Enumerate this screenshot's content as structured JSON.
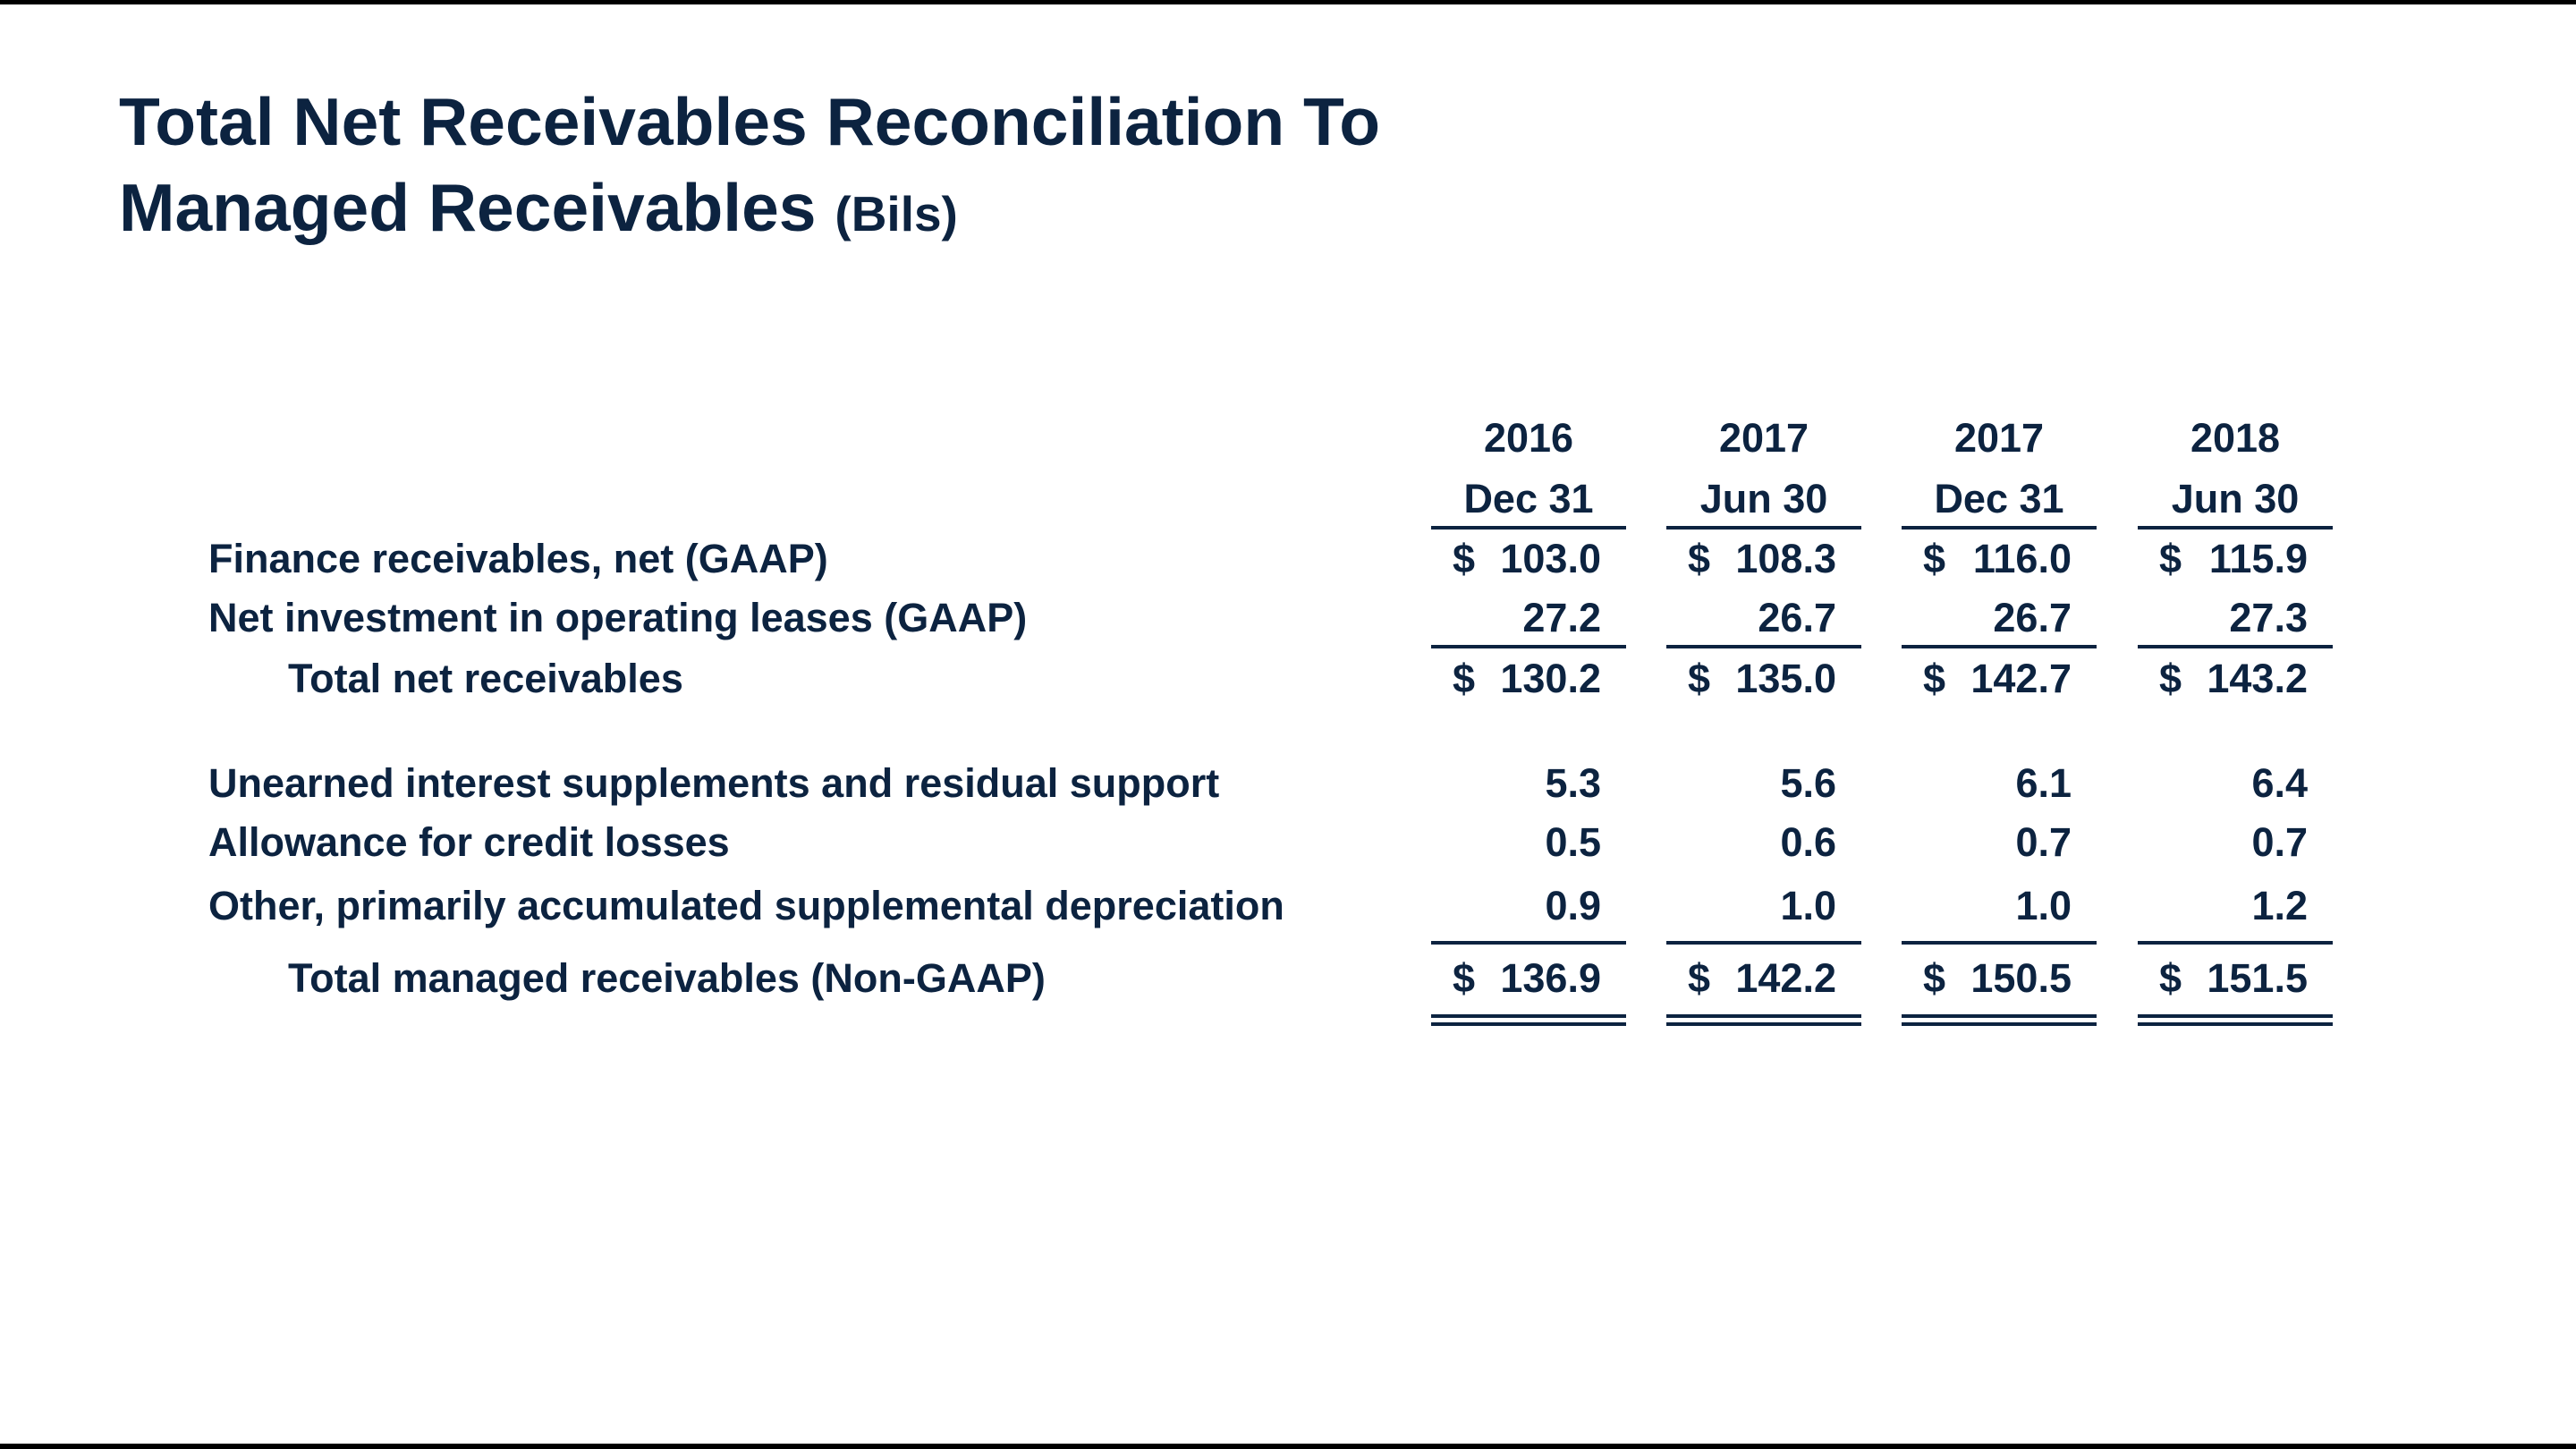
{
  "title": {
    "line1": "Total Net Receivables Reconciliation To",
    "line2": "Managed Receivables",
    "unit": "(Bils)"
  },
  "columns": [
    {
      "year": "2016",
      "date": "Dec 31"
    },
    {
      "year": "2017",
      "date": "Jun 30"
    },
    {
      "year": "2017",
      "date": "Dec 31"
    },
    {
      "year": "2018",
      "date": "Jun 30"
    }
  ],
  "rows": [
    {
      "label": "Finance receivables, net (GAAP)",
      "dollar": "$",
      "values": [
        "103.0",
        "108.3",
        "116.0",
        "115.9"
      ]
    },
    {
      "label": "Net investment in operating leases (GAAP)",
      "dollar": "",
      "values": [
        "27.2",
        "26.7",
        "26.7",
        "27.3"
      ]
    },
    {
      "label": "Total net receivables",
      "dollar": "$",
      "values": [
        "130.2",
        "135.0",
        "142.7",
        "143.2"
      ]
    },
    {
      "label": "Unearned interest supplements and residual support",
      "dollar": "",
      "values": [
        "5.3",
        "5.6",
        "6.1",
        "6.4"
      ]
    },
    {
      "label": "Allowance for credit losses",
      "dollar": "",
      "values": [
        "0.5",
        "0.6",
        "0.7",
        "0.7"
      ]
    },
    {
      "label": "Other, primarily accumulated supplemental depreciation",
      "dollar": "",
      "values": [
        "0.9",
        "1.0",
        "1.0",
        "1.2"
      ]
    },
    {
      "label": "Total managed receivables (Non-GAAP)",
      "dollar": "$",
      "values": [
        "136.9",
        "142.2",
        "150.5",
        "151.5"
      ]
    }
  ]
}
